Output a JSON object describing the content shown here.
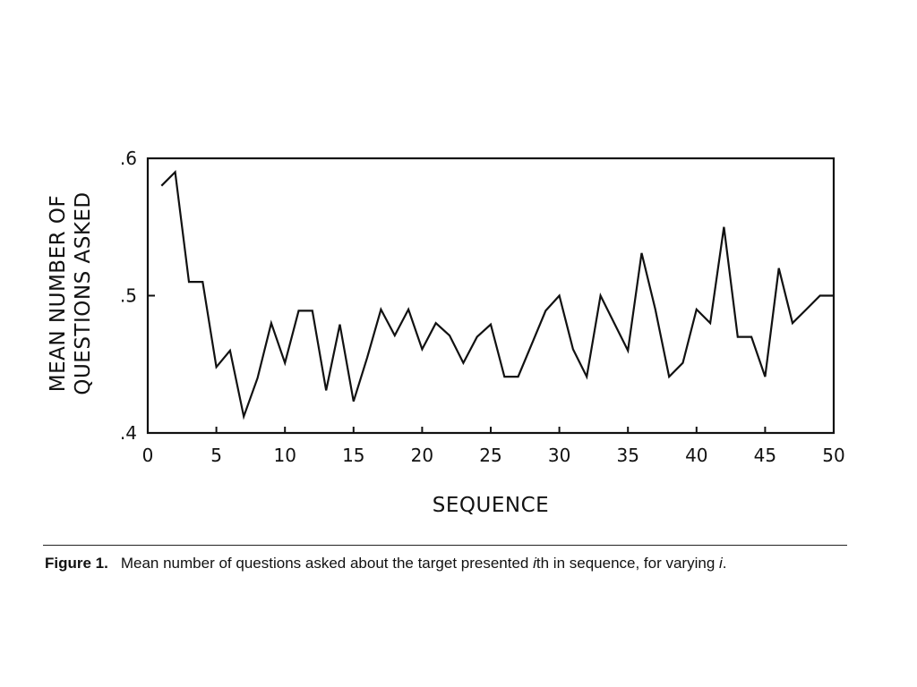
{
  "chart_data": {
    "type": "line",
    "title": "",
    "xlabel": "SEQUENCE",
    "ylabel_lines": [
      "MEAN NUMBER OF",
      "QUESTIONS ASKED"
    ],
    "xlim": [
      0,
      50
    ],
    "ylim": [
      0.4,
      0.6
    ],
    "xticks": [
      0,
      5,
      10,
      15,
      20,
      25,
      30,
      35,
      40,
      45,
      50
    ],
    "xtick_labels": [
      "0",
      "5",
      "10",
      "15",
      "20",
      "25",
      "30",
      "35",
      "40",
      "45",
      "50"
    ],
    "yticks": [
      0.4,
      0.5,
      0.6
    ],
    "ytick_labels": [
      ".4",
      ".5",
      ".6"
    ],
    "grid": false,
    "series": [
      {
        "x": [
          1,
          2,
          3,
          4,
          5,
          6,
          7,
          8,
          9,
          10,
          11,
          12,
          13,
          14,
          15,
          16,
          17,
          18,
          19,
          20,
          21,
          22,
          23,
          24,
          25,
          26,
          27,
          28,
          29,
          30,
          31,
          32,
          33,
          34,
          35,
          36,
          37,
          38,
          39,
          40,
          41,
          42,
          43,
          44,
          45,
          46,
          47,
          48,
          49,
          50
        ],
        "values": [
          0.58,
          0.59,
          0.51,
          0.51,
          0.448,
          0.46,
          0.412,
          0.44,
          0.48,
          0.451,
          0.489,
          0.489,
          0.431,
          0.479,
          0.423,
          0.455,
          0.49,
          0.471,
          0.49,
          0.461,
          0.48,
          0.471,
          0.451,
          0.47,
          0.479,
          0.441,
          0.441,
          0.465,
          0.489,
          0.5,
          0.461,
          0.441,
          0.5,
          0.48,
          0.46,
          0.531,
          0.49,
          0.441,
          0.451,
          0.49,
          0.48,
          0.55,
          0.47,
          0.47,
          0.441,
          0.52,
          0.48,
          0.49,
          0.5,
          0.5
        ]
      }
    ]
  },
  "caption": {
    "label": "Figure 1.",
    "text_before": "Mean number of questions asked about the target presented ",
    "var1": "i",
    "text_middle": "th in sequence, for varying ",
    "var2": "i",
    "text_after": "."
  }
}
